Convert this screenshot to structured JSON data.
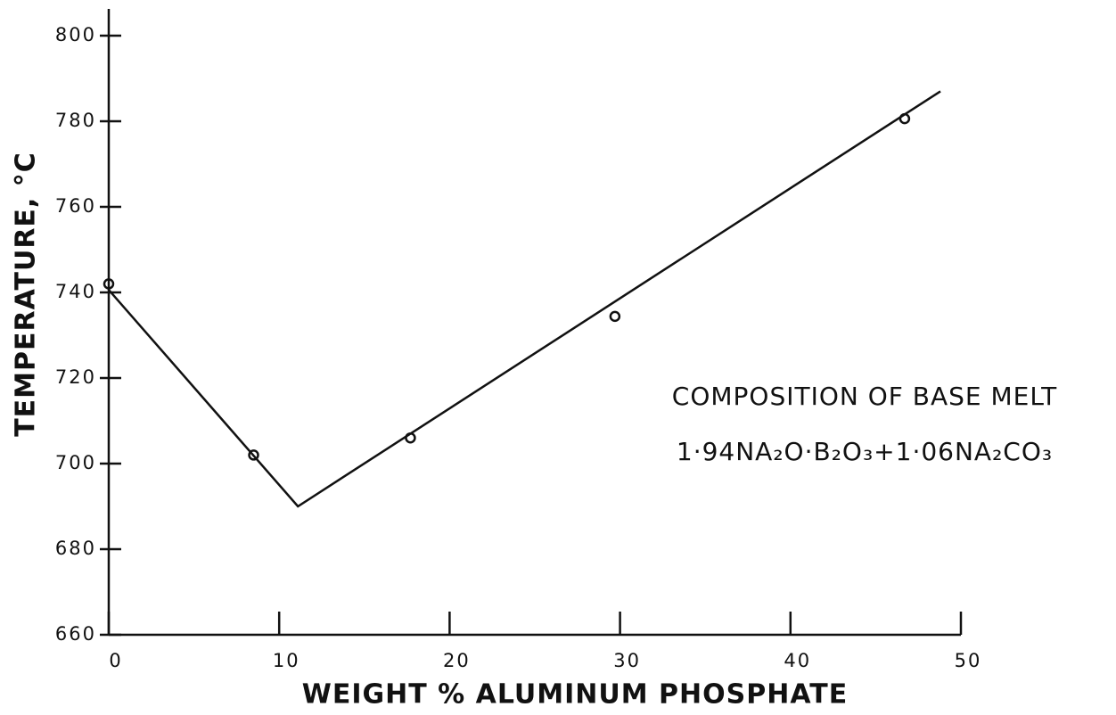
{
  "chart_data": {
    "type": "scatter",
    "xlabel": "WEIGHT % ALUMINUM PHOSPHATE",
    "ylabel": "TEMPERATURE, °C",
    "annotations": [
      "COMPOSITION OF BASE MELT",
      "1·94NA₂O·B₂O₃+1·06NA₂CO₃"
    ],
    "xlim": [
      0,
      50
    ],
    "ylim": [
      660,
      800
    ],
    "xticks": [
      0,
      10,
      20,
      30,
      40,
      50
    ],
    "yticks": [
      660,
      680,
      700,
      720,
      740,
      760,
      780,
      800
    ],
    "color": "#111111",
    "series": [
      {
        "type": "scatter",
        "x": [
          0,
          8.5,
          17.7,
          29.7,
          46.7
        ],
        "values": [
          742,
          702,
          706,
          734.4,
          780.6
        ]
      },
      {
        "type": "line",
        "x": [
          0,
          11.1,
          48.8
        ],
        "values": [
          740.6,
          690,
          787
        ]
      }
    ]
  }
}
